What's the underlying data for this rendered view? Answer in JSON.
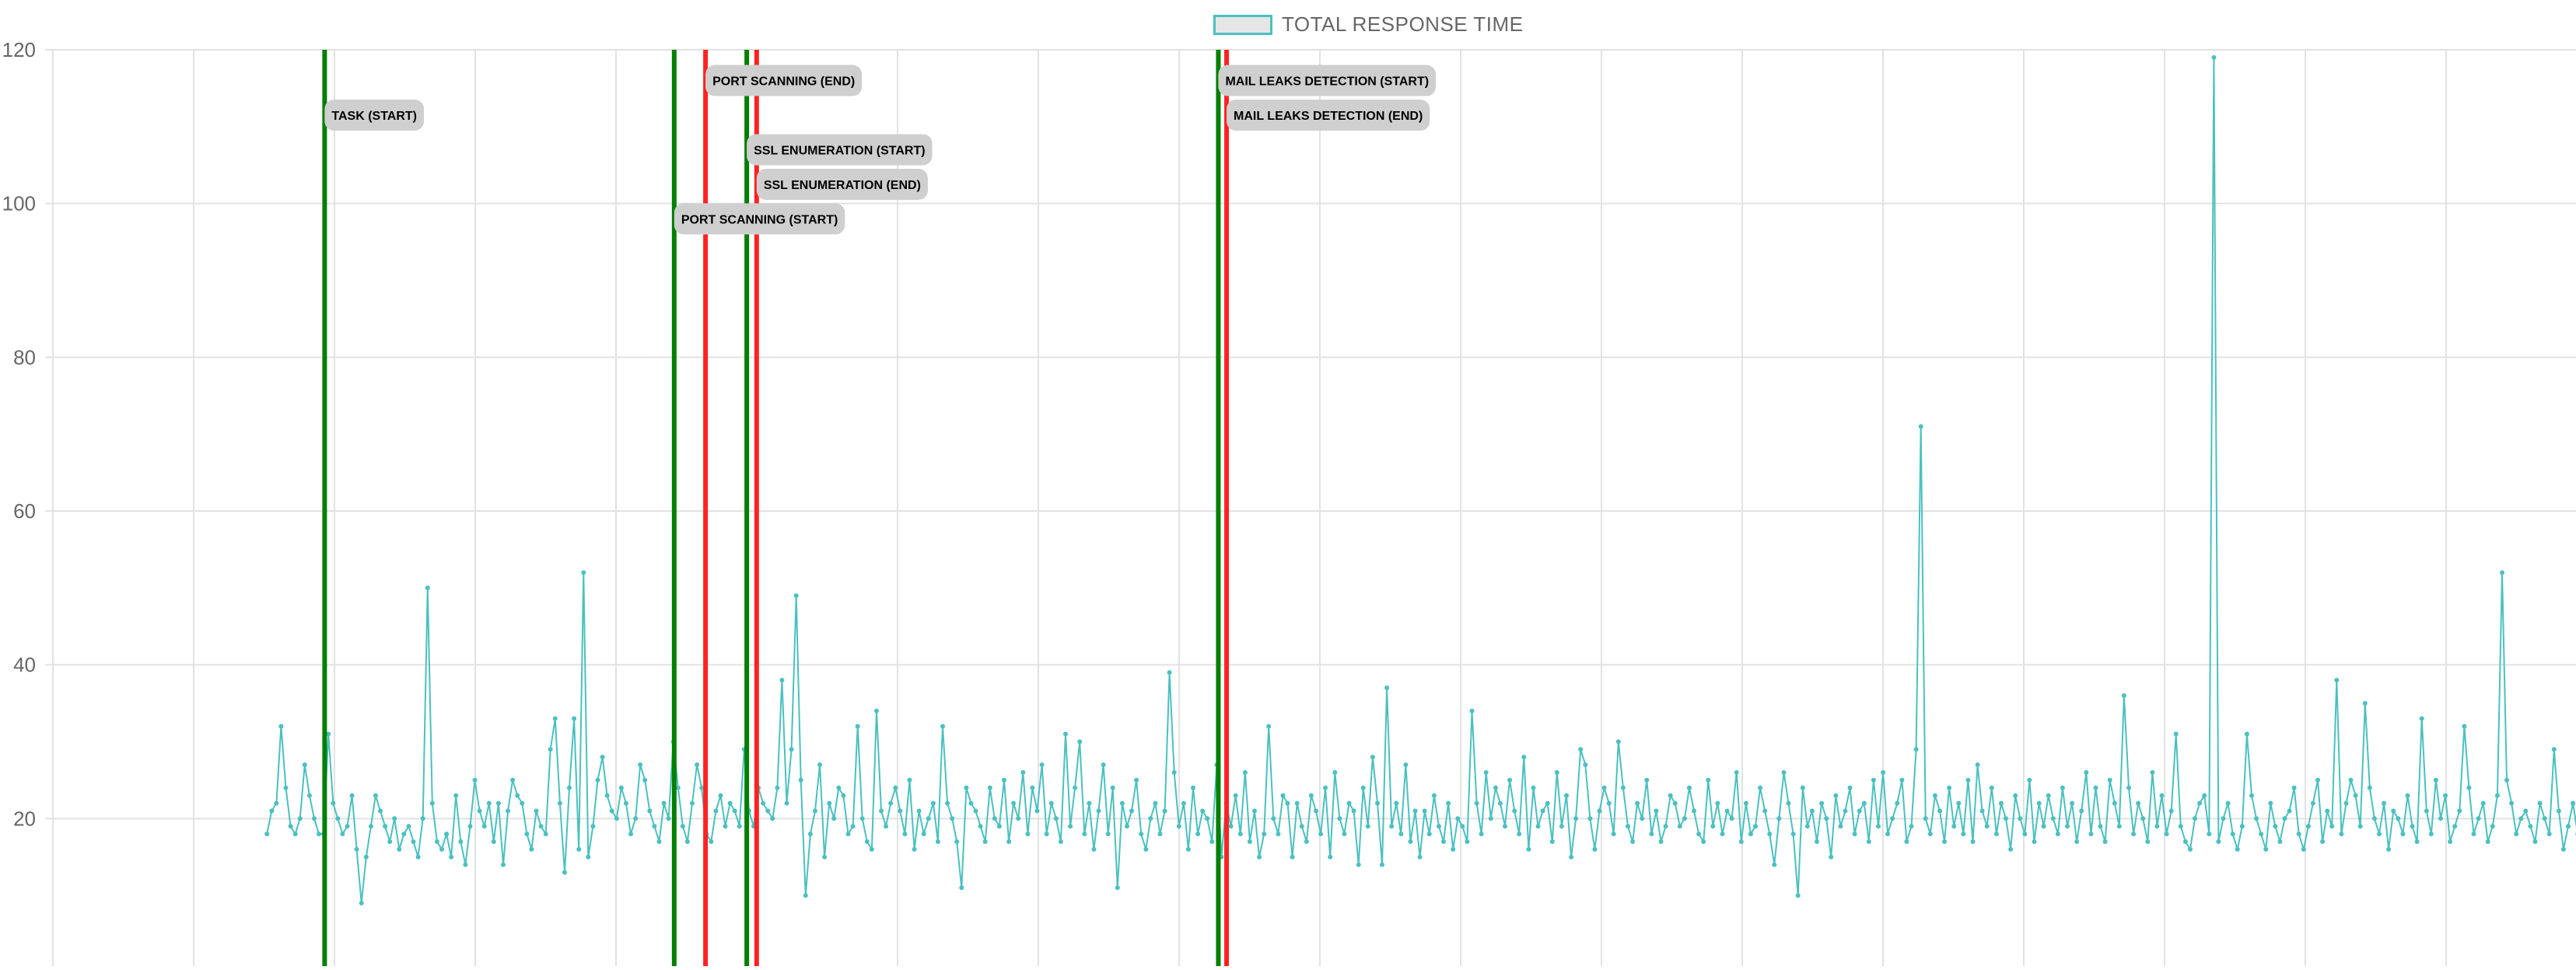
{
  "legend": {
    "label": "TOTAL RESPONSE TIME",
    "swatch_fill": "#e6e6e6",
    "swatch_border": "#4bc0c0"
  },
  "chart_data": {
    "type": "line",
    "title": "",
    "xlabel": "",
    "ylabel": "",
    "ylim": [
      0,
      120
    ],
    "yticks": [
      20,
      40,
      60,
      80,
      100,
      120
    ],
    "grid": true,
    "legend_position": "top-center",
    "series": [
      {
        "name": "TOTAL RESPONSE TIME",
        "color": "#4bc0c0",
        "x_range": [
          160,
          1570
        ],
        "values": [
          18,
          21,
          22,
          32,
          24,
          19,
          18,
          20,
          27,
          23,
          20,
          18,
          18,
          31,
          22,
          20,
          18,
          19,
          23,
          16,
          9,
          15,
          19,
          23,
          21,
          19,
          17,
          20,
          16,
          18,
          19,
          17,
          15,
          20,
          50,
          22,
          17,
          16,
          18,
          15,
          23,
          17,
          14,
          19,
          25,
          21,
          19,
          22,
          17,
          22,
          14,
          21,
          25,
          23,
          22,
          18,
          16,
          21,
          19,
          18,
          29,
          33,
          22,
          13,
          24,
          33,
          16,
          52,
          15,
          19,
          25,
          28,
          23,
          21,
          20,
          24,
          22,
          18,
          20,
          27,
          25,
          21,
          19,
          17,
          22,
          20,
          30,
          24,
          19,
          17,
          22,
          27,
          24,
          18,
          17,
          21,
          23,
          19,
          22,
          21,
          19,
          29,
          21,
          19,
          24,
          22,
          21,
          20,
          24,
          38,
          22,
          29,
          49,
          25,
          10,
          18,
          21,
          27,
          15,
          22,
          20,
          24,
          23,
          18,
          19,
          32,
          20,
          17,
          16,
          34,
          21,
          19,
          22,
          24,
          21,
          18,
          25,
          16,
          21,
          18,
          20,
          22,
          17,
          32,
          22,
          20,
          17,
          11,
          24,
          22,
          21,
          19,
          17,
          24,
          20,
          19,
          25,
          17,
          22,
          20,
          26,
          18,
          24,
          21,
          27,
          18,
          22,
          20,
          17,
          31,
          19,
          24,
          30,
          18,
          22,
          16,
          21,
          27,
          18,
          24,
          11,
          22,
          19,
          21,
          25,
          18,
          16,
          20,
          22,
          18,
          21,
          39,
          26,
          19,
          22,
          16,
          24,
          18,
          21,
          20,
          17,
          27,
          15,
          22,
          19,
          23,
          18,
          26,
          17,
          21,
          15,
          18,
          32,
          20,
          18,
          23,
          22,
          15,
          22,
          19,
          17,
          23,
          21,
          18,
          24,
          15,
          26,
          20,
          18,
          22,
          21,
          14,
          24,
          19,
          28,
          22,
          14,
          37,
          19,
          22,
          18,
          27,
          17,
          21,
          15,
          21,
          18,
          23,
          19,
          17,
          22,
          16,
          20,
          19,
          17,
          34,
          22,
          18,
          26,
          20,
          24,
          22,
          19,
          25,
          21,
          18,
          28,
          16,
          24,
          19,
          21,
          22,
          17,
          26,
          19,
          23,
          15,
          20,
          29,
          27,
          20,
          16,
          21,
          24,
          22,
          18,
          30,
          24,
          19,
          17,
          22,
          20,
          25,
          18,
          21,
          17,
          19,
          23,
          22,
          19,
          20,
          24,
          21,
          18,
          17,
          25,
          19,
          22,
          18,
          21,
          20,
          26,
          17,
          22,
          18,
          19,
          24,
          21,
          18,
          14,
          20,
          26,
          22,
          18,
          10,
          24,
          19,
          21,
          17,
          22,
          20,
          15,
          23,
          19,
          21,
          24,
          18,
          21,
          22,
          17,
          25,
          19,
          26,
          18,
          20,
          22,
          25,
          17,
          19,
          29,
          71,
          20,
          18,
          23,
          21,
          17,
          24,
          19,
          22,
          18,
          25,
          17,
          27,
          21,
          19,
          24,
          18,
          22,
          20,
          16,
          23,
          20,
          18,
          25,
          17,
          22,
          19,
          23,
          20,
          18,
          24,
          19,
          22,
          17,
          21,
          26,
          18,
          24,
          19,
          17,
          25,
          22,
          19,
          36,
          24,
          18,
          22,
          20,
          17,
          26,
          19,
          23,
          18,
          21,
          31,
          19,
          17,
          16,
          20,
          22,
          23,
          18,
          119,
          17,
          20,
          22,
          18,
          16,
          19,
          31,
          23,
          20,
          18,
          16,
          22,
          19,
          17,
          20,
          21,
          24,
          18,
          16,
          19,
          22,
          25,
          17,
          21,
          19,
          38,
          18,
          22,
          25,
          23,
          19,
          35,
          24,
          20,
          18,
          22,
          16,
          21,
          20,
          18,
          23,
          19,
          17,
          33,
          21,
          18,
          25,
          20,
          23,
          17,
          19,
          21,
          32,
          24,
          18,
          20,
          22,
          17,
          19,
          23,
          52,
          25,
          22,
          18,
          20,
          21,
          19,
          17,
          22,
          20,
          18,
          29,
          21,
          16,
          19,
          22,
          18,
          20,
          21,
          17
        ]
      }
    ],
    "annotations": [
      {
        "label": "TASK (START)",
        "type": "start",
        "color": "#008000",
        "x": 195,
        "label_y": 111.5
      },
      {
        "label": "PORT SCANNING (START)",
        "type": "start",
        "color": "#008000",
        "x": 407,
        "label_y": 98
      },
      {
        "label": "PORT SCANNING (END)",
        "type": "end",
        "color": "#ff2222",
        "x": 426,
        "label_y": 116
      },
      {
        "label": "SSL ENUMERATION (START)",
        "type": "start",
        "color": "#008000",
        "x": 451,
        "label_y": 107
      },
      {
        "label": "SSL ENUMERATION (END)",
        "type": "end",
        "color": "#ff2222",
        "x": 457,
        "label_y": 102.5
      },
      {
        "label": "MAIL LEAKS DETECTION (START)",
        "type": "start",
        "color": "#008000",
        "x": 737,
        "label_y": 116
      },
      {
        "label": "MAIL LEAKS DETECTION (END)",
        "type": "end",
        "color": "#ff2222",
        "x": 742,
        "label_y": 111.5
      }
    ]
  }
}
